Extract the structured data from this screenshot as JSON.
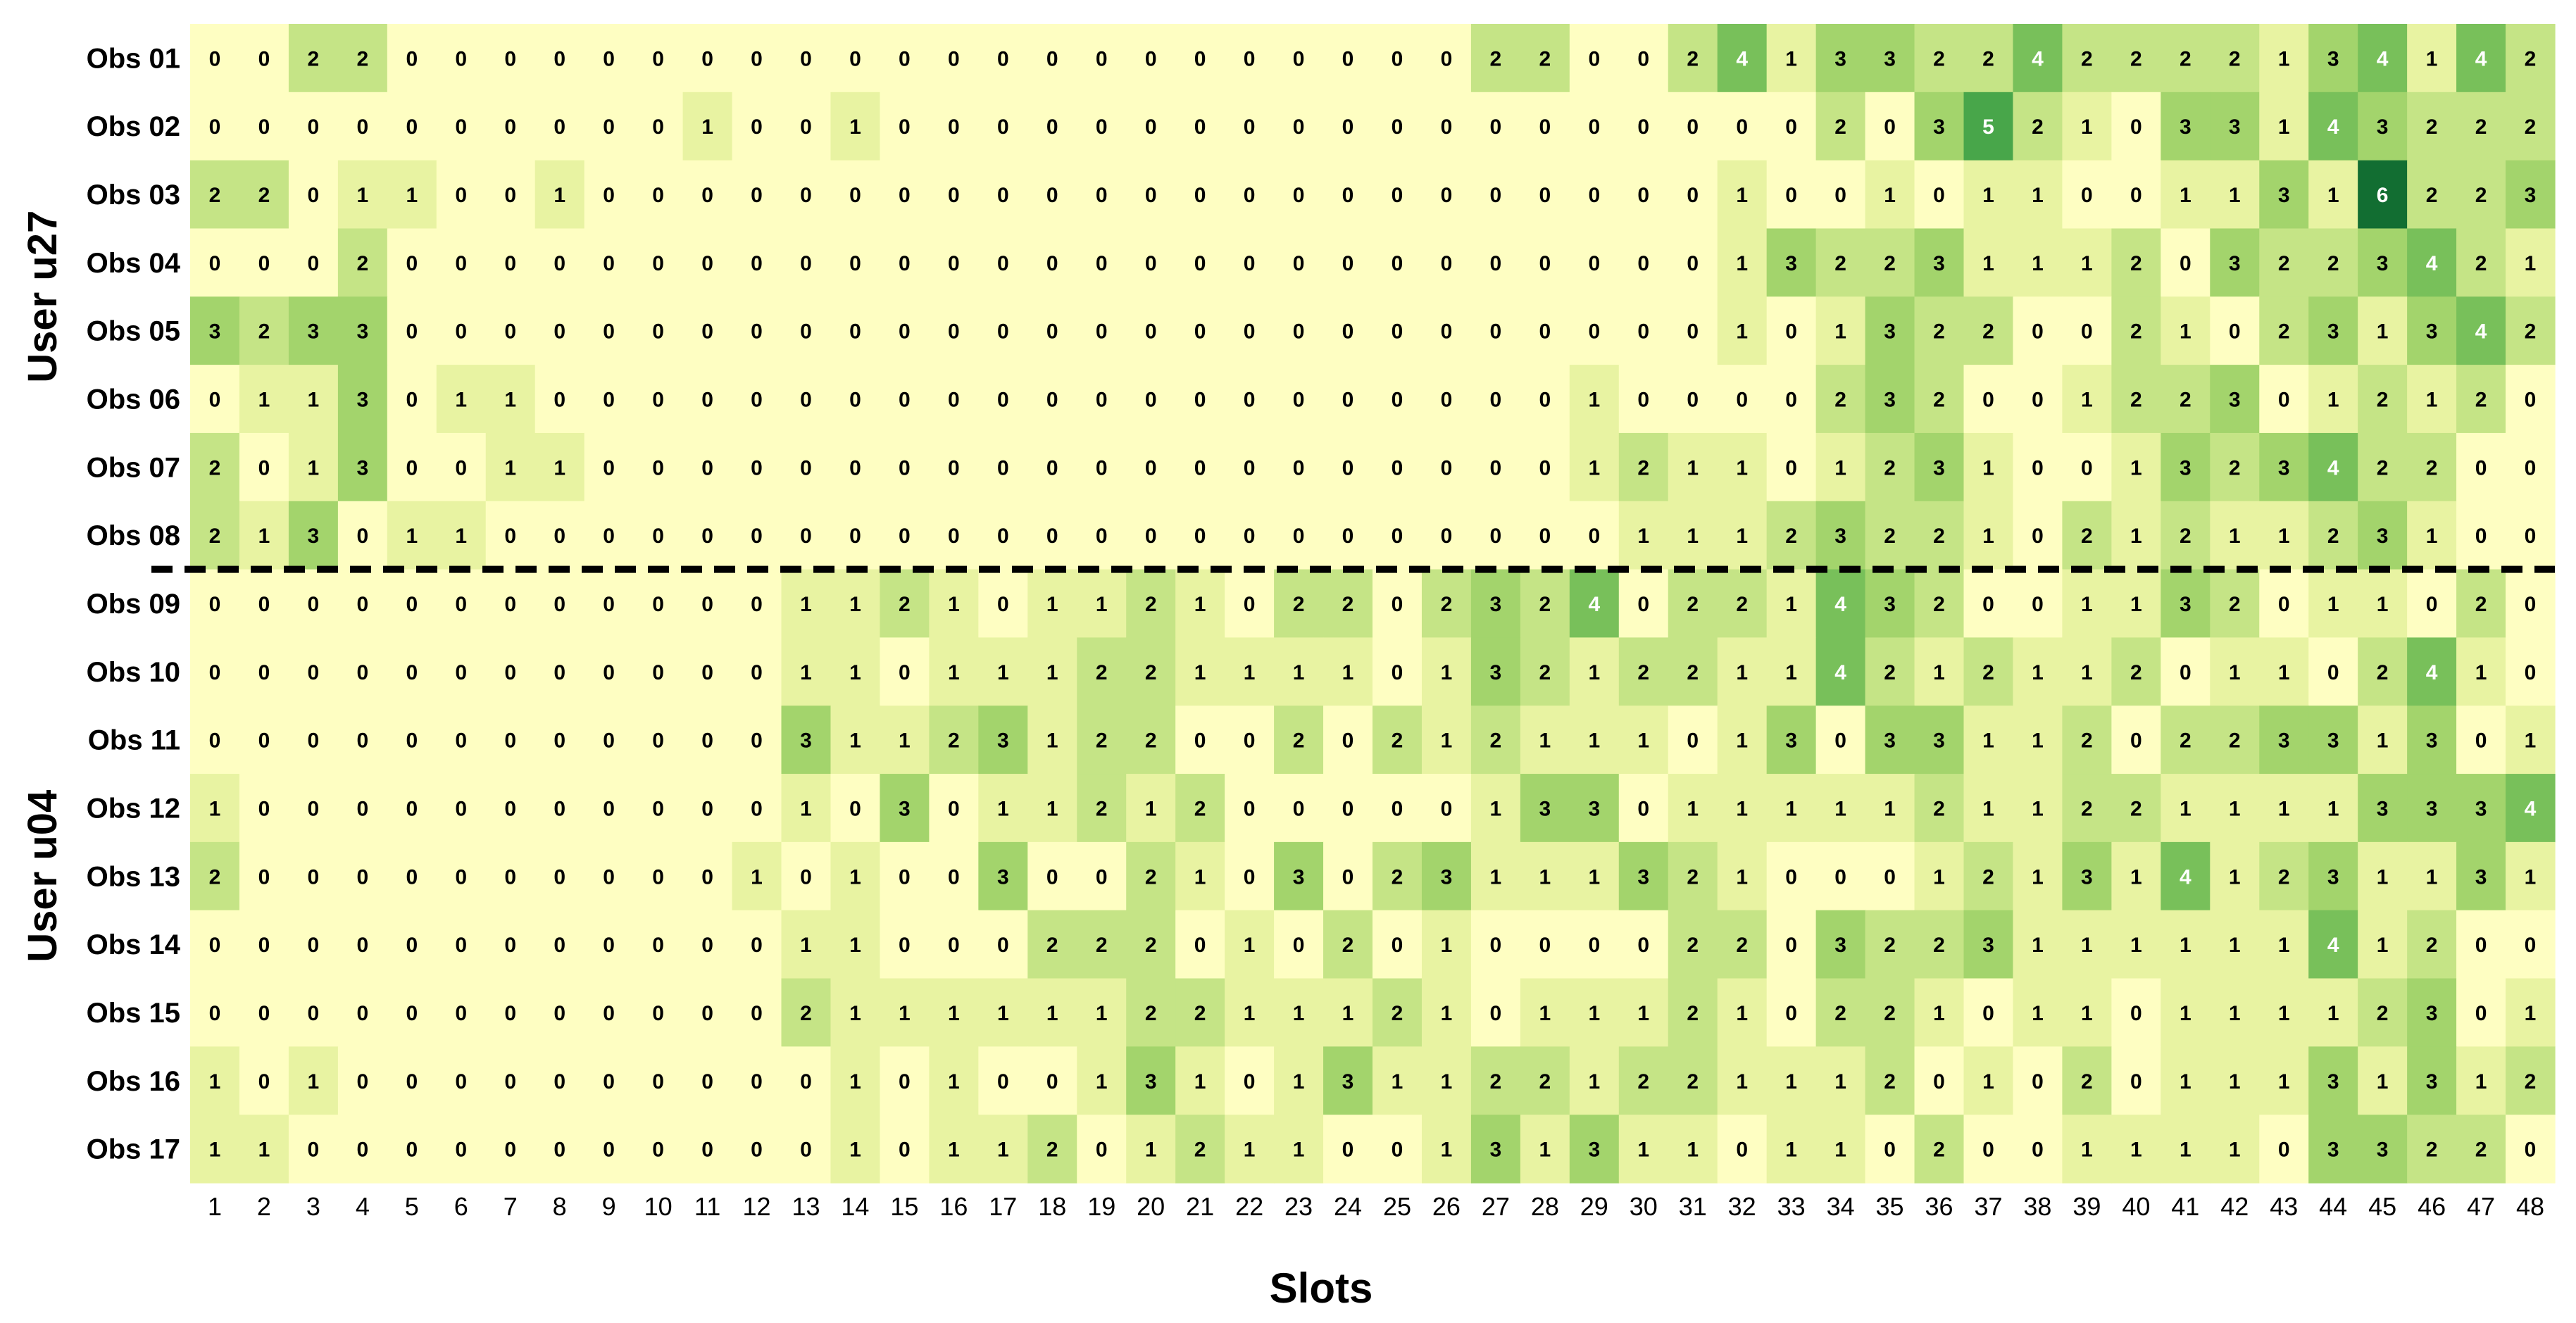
{
  "chart_data": {
    "type": "heatmap",
    "xlabel": "Slots",
    "x": [
      1,
      2,
      3,
      4,
      5,
      6,
      7,
      8,
      9,
      10,
      11,
      12,
      13,
      14,
      15,
      16,
      17,
      18,
      19,
      20,
      21,
      22,
      23,
      24,
      25,
      26,
      27,
      28,
      29,
      30,
      31,
      32,
      33,
      34,
      35,
      36,
      37,
      38,
      39,
      40,
      41,
      42,
      43,
      44,
      45,
      46,
      47,
      48
    ],
    "rows": [
      "Obs 01",
      "Obs 02",
      "Obs 03",
      "Obs 04",
      "Obs 05",
      "Obs 06",
      "Obs 07",
      "Obs 08",
      "Obs 09",
      "Obs 10",
      "Obs 11",
      "Obs 12",
      "Obs 13",
      "Obs 14",
      "Obs 15",
      "Obs 16",
      "Obs 17"
    ],
    "groups": [
      {
        "label": "User u27",
        "rows": [
          "Obs 01",
          "Obs 02",
          "Obs 03",
          "Obs 04",
          "Obs 05",
          "Obs 06",
          "Obs 07",
          "Obs 08"
        ]
      },
      {
        "label": "User u04",
        "rows": [
          "Obs 09",
          "Obs 10",
          "Obs 11",
          "Obs 12",
          "Obs 13",
          "Obs 14",
          "Obs 15",
          "Obs 16",
          "Obs 17"
        ]
      }
    ],
    "values": [
      [
        0,
        0,
        2,
        2,
        0,
        0,
        0,
        0,
        0,
        0,
        0,
        0,
        0,
        0,
        0,
        0,
        0,
        0,
        0,
        0,
        0,
        0,
        0,
        0,
        0,
        0,
        2,
        2,
        0,
        0,
        2,
        4,
        1,
        3,
        3,
        2,
        2,
        4,
        2,
        2,
        2,
        2,
        1,
        3,
        4,
        1,
        4,
        2
      ],
      [
        0,
        0,
        0,
        0,
        0,
        0,
        0,
        0,
        0,
        0,
        1,
        0,
        0,
        1,
        0,
        0,
        0,
        0,
        0,
        0,
        0,
        0,
        0,
        0,
        0,
        0,
        0,
        0,
        0,
        0,
        0,
        0,
        0,
        2,
        0,
        3,
        5,
        2,
        1,
        0,
        3,
        3,
        1,
        4,
        3,
        2,
        2,
        2
      ],
      [
        2,
        2,
        0,
        1,
        1,
        0,
        0,
        1,
        0,
        0,
        0,
        0,
        0,
        0,
        0,
        0,
        0,
        0,
        0,
        0,
        0,
        0,
        0,
        0,
        0,
        0,
        0,
        0,
        0,
        0,
        0,
        1,
        0,
        0,
        1,
        0,
        1,
        1,
        0,
        0,
        1,
        1,
        3,
        1,
        6,
        2,
        2,
        3
      ],
      [
        0,
        0,
        0,
        2,
        0,
        0,
        0,
        0,
        0,
        0,
        0,
        0,
        0,
        0,
        0,
        0,
        0,
        0,
        0,
        0,
        0,
        0,
        0,
        0,
        0,
        0,
        0,
        0,
        0,
        0,
        0,
        1,
        3,
        2,
        2,
        3,
        1,
        1,
        1,
        2,
        0,
        3,
        2,
        2,
        3,
        4,
        2,
        1
      ],
      [
        3,
        2,
        3,
        3,
        0,
        0,
        0,
        0,
        0,
        0,
        0,
        0,
        0,
        0,
        0,
        0,
        0,
        0,
        0,
        0,
        0,
        0,
        0,
        0,
        0,
        0,
        0,
        0,
        0,
        0,
        0,
        1,
        0,
        1,
        3,
        2,
        2,
        0,
        0,
        2,
        1,
        0,
        2,
        3,
        1,
        3,
        4,
        2
      ],
      [
        0,
        1,
        1,
        3,
        0,
        1,
        1,
        0,
        0,
        0,
        0,
        0,
        0,
        0,
        0,
        0,
        0,
        0,
        0,
        0,
        0,
        0,
        0,
        0,
        0,
        0,
        0,
        0,
        1,
        0,
        0,
        0,
        0,
        2,
        3,
        2,
        0,
        0,
        1,
        2,
        2,
        3,
        0,
        1,
        2,
        1,
        2,
        0
      ],
      [
        2,
        0,
        1,
        3,
        0,
        0,
        1,
        1,
        0,
        0,
        0,
        0,
        0,
        0,
        0,
        0,
        0,
        0,
        0,
        0,
        0,
        0,
        0,
        0,
        0,
        0,
        0,
        0,
        1,
        2,
        1,
        1,
        0,
        1,
        2,
        3,
        1,
        0,
        0,
        1,
        3,
        2,
        3,
        4,
        2,
        2,
        0,
        0
      ],
      [
        2,
        1,
        3,
        0,
        1,
        1,
        0,
        0,
        0,
        0,
        0,
        0,
        0,
        0,
        0,
        0,
        0,
        0,
        0,
        0,
        0,
        0,
        0,
        0,
        0,
        0,
        0,
        0,
        0,
        1,
        1,
        1,
        2,
        3,
        2,
        2,
        1,
        0,
        2,
        1,
        2,
        1,
        1,
        2,
        3,
        1,
        0,
        0
      ],
      [
        0,
        0,
        0,
        0,
        0,
        0,
        0,
        0,
        0,
        0,
        0,
        0,
        1,
        1,
        2,
        1,
        0,
        1,
        1,
        2,
        1,
        0,
        2,
        2,
        0,
        2,
        3,
        2,
        4,
        0,
        2,
        2,
        1,
        4,
        3,
        2,
        0,
        0,
        1,
        1,
        3,
        2,
        0,
        1,
        1,
        0,
        2,
        0
      ],
      [
        0,
        0,
        0,
        0,
        0,
        0,
        0,
        0,
        0,
        0,
        0,
        0,
        1,
        1,
        0,
        1,
        1,
        1,
        2,
        2,
        1,
        1,
        1,
        1,
        0,
        1,
        3,
        2,
        1,
        2,
        2,
        1,
        1,
        4,
        2,
        1,
        2,
        1,
        1,
        2,
        0,
        1,
        1,
        0,
        2,
        4,
        1,
        0
      ],
      [
        0,
        0,
        0,
        0,
        0,
        0,
        0,
        0,
        0,
        0,
        0,
        0,
        3,
        1,
        1,
        2,
        3,
        1,
        2,
        2,
        0,
        0,
        2,
        0,
        2,
        1,
        2,
        1,
        1,
        1,
        0,
        1,
        3,
        0,
        3,
        3,
        1,
        1,
        2,
        0,
        2,
        2,
        3,
        3,
        1,
        3,
        0,
        1
      ],
      [
        1,
        0,
        0,
        0,
        0,
        0,
        0,
        0,
        0,
        0,
        0,
        0,
        1,
        0,
        3,
        0,
        1,
        1,
        2,
        1,
        2,
        0,
        0,
        0,
        0,
        0,
        1,
        3,
        3,
        0,
        1,
        1,
        1,
        1,
        1,
        2,
        1,
        1,
        2,
        2,
        1,
        1,
        1,
        1,
        3,
        3,
        3,
        4
      ],
      [
        2,
        0,
        0,
        0,
        0,
        0,
        0,
        0,
        0,
        0,
        0,
        1,
        0,
        1,
        0,
        0,
        3,
        0,
        0,
        2,
        1,
        0,
        3,
        0,
        2,
        3,
        1,
        1,
        1,
        3,
        2,
        1,
        0,
        0,
        0,
        1,
        2,
        1,
        3,
        1,
        4,
        1,
        2,
        3,
        1,
        1,
        3,
        1
      ],
      [
        0,
        0,
        0,
        0,
        0,
        0,
        0,
        0,
        0,
        0,
        0,
        0,
        1,
        1,
        0,
        0,
        0,
        2,
        2,
        2,
        0,
        1,
        0,
        2,
        0,
        1,
        0,
        0,
        0,
        0,
        2,
        2,
        0,
        3,
        2,
        2,
        3,
        1,
        1,
        1,
        1,
        1,
        1,
        4,
        1,
        2,
        0,
        0
      ],
      [
        0,
        0,
        0,
        0,
        0,
        0,
        0,
        0,
        0,
        0,
        0,
        0,
        2,
        1,
        1,
        1,
        1,
        1,
        1,
        2,
        2,
        1,
        1,
        1,
        2,
        1,
        0,
        1,
        1,
        1,
        2,
        1,
        0,
        2,
        2,
        1,
        0,
        1,
        1,
        0,
        1,
        1,
        1,
        1,
        2,
        3,
        0,
        1
      ],
      [
        1,
        0,
        1,
        0,
        0,
        0,
        0,
        0,
        0,
        0,
        0,
        0,
        0,
        1,
        0,
        1,
        0,
        0,
        1,
        3,
        1,
        0,
        1,
        3,
        1,
        1,
        2,
        2,
        1,
        2,
        2,
        1,
        1,
        1,
        2,
        0,
        1,
        0,
        2,
        0,
        1,
        1,
        1,
        3,
        1,
        3,
        1,
        2
      ],
      [
        1,
        1,
        0,
        0,
        0,
        0,
        0,
        0,
        0,
        0,
        0,
        0,
        0,
        1,
        0,
        1,
        1,
        2,
        0,
        1,
        2,
        1,
        1,
        0,
        0,
        1,
        3,
        1,
        3,
        1,
        1,
        0,
        1,
        1,
        0,
        2,
        0,
        0,
        1,
        1,
        1,
        1,
        0,
        3,
        3,
        2,
        2,
        0
      ]
    ],
    "color_scale": [
      "#fefec2",
      "#e8f3a2",
      "#c5e486",
      "#a3d46c",
      "#78c05a",
      "#48a64a",
      "#126e32"
    ],
    "divider_after_row": "Obs 08",
    "legend": "none",
    "grid": false
  }
}
